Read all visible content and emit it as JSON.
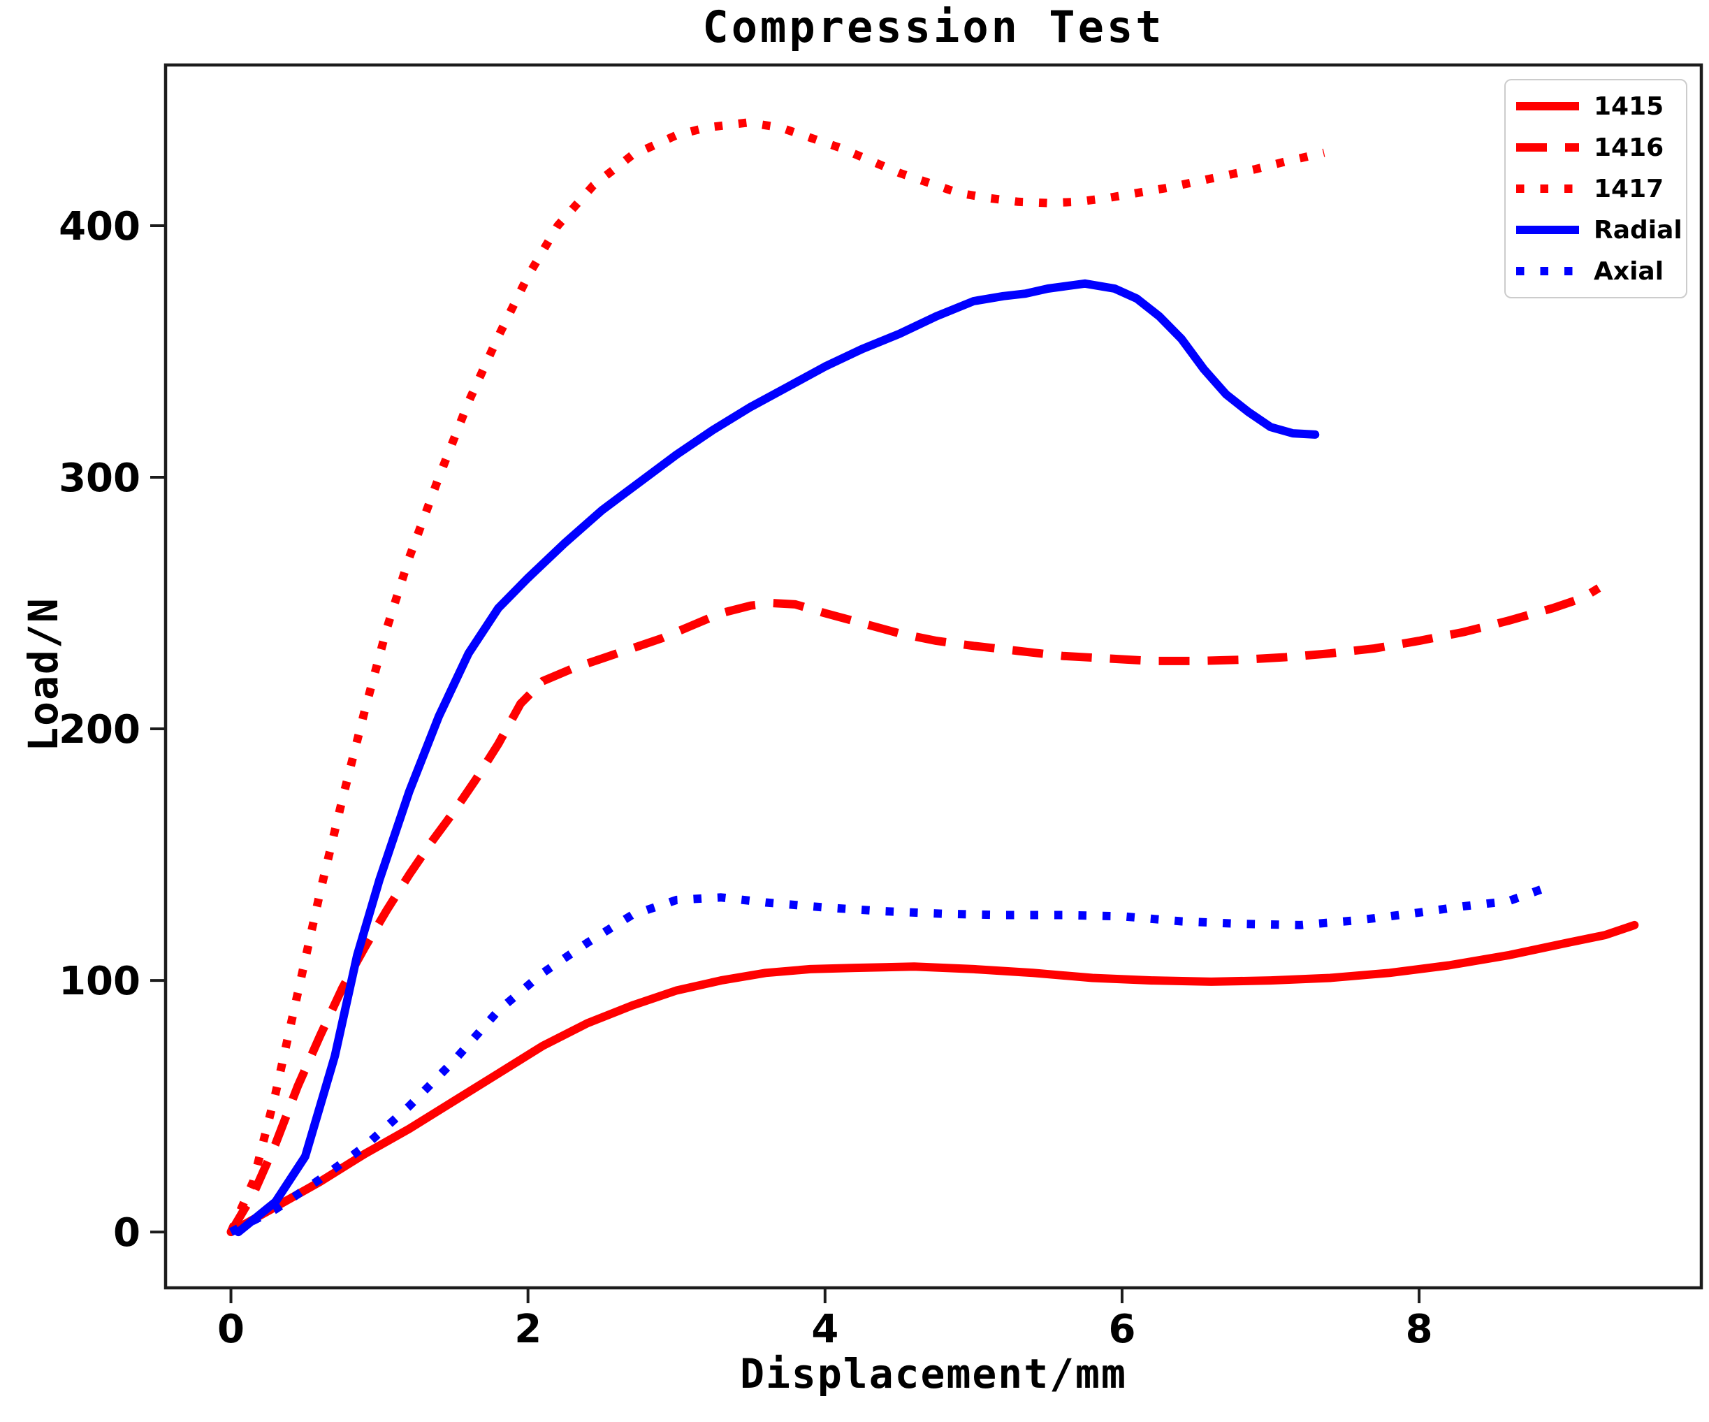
{
  "colors": {
    "red": "#ff0000",
    "blue": "#0000ff",
    "spine": "#1c1c1c",
    "legend_border": "#cccccc",
    "text": "#000000"
  },
  "legend": {
    "items": [
      {
        "label": "1415"
      },
      {
        "label": "1416"
      },
      {
        "label": "1417"
      },
      {
        "label": "Radial"
      },
      {
        "label": "Axial"
      }
    ]
  },
  "chart_data": {
    "type": "line",
    "title": "Compression Test",
    "xlabel": "Displacement/mm",
    "ylabel": "Load/N",
    "xlim": [
      -0.44,
      9.9
    ],
    "ylim": [
      -22.2,
      463.9
    ],
    "xticks": [
      0,
      2,
      4,
      6,
      8
    ],
    "yticks": [
      0,
      100,
      200,
      300,
      400
    ],
    "grid": false,
    "legend_position": "upper right",
    "series": [
      {
        "name": "1415",
        "color": "#ff0000",
        "style": "solid",
        "points": [
          [
            0,
            0
          ],
          [
            0.3,
            10
          ],
          [
            0.6,
            20
          ],
          [
            0.9,
            31
          ],
          [
            1.2,
            41
          ],
          [
            1.5,
            52
          ],
          [
            1.8,
            63
          ],
          [
            2.1,
            74
          ],
          [
            2.4,
            83
          ],
          [
            2.7,
            90
          ],
          [
            3.0,
            96
          ],
          [
            3.3,
            100
          ],
          [
            3.6,
            103
          ],
          [
            3.9,
            104.5
          ],
          [
            4.2,
            105
          ],
          [
            4.6,
            105.5
          ],
          [
            5.0,
            104.5
          ],
          [
            5.4,
            103
          ],
          [
            5.8,
            101
          ],
          [
            6.2,
            100
          ],
          [
            6.6,
            99.5
          ],
          [
            7.0,
            100
          ],
          [
            7.4,
            101
          ],
          [
            7.8,
            103
          ],
          [
            8.2,
            106
          ],
          [
            8.6,
            110
          ],
          [
            9.0,
            115
          ],
          [
            9.25,
            118
          ],
          [
            9.45,
            122
          ]
        ]
      },
      {
        "name": "1416",
        "color": "#ff0000",
        "style": "dashed",
        "points": [
          [
            0,
            0
          ],
          [
            0.15,
            15
          ],
          [
            0.3,
            35
          ],
          [
            0.45,
            58
          ],
          [
            0.6,
            78
          ],
          [
            0.75,
            97
          ],
          [
            0.9,
            113
          ],
          [
            1.05,
            128
          ],
          [
            1.2,
            142
          ],
          [
            1.35,
            155
          ],
          [
            1.5,
            167
          ],
          [
            1.65,
            180
          ],
          [
            1.8,
            194
          ],
          [
            1.95,
            210
          ],
          [
            2.1,
            219
          ],
          [
            2.3,
            224
          ],
          [
            2.5,
            228
          ],
          [
            2.7,
            232
          ],
          [
            2.9,
            236
          ],
          [
            3.1,
            241
          ],
          [
            3.3,
            246
          ],
          [
            3.5,
            249
          ],
          [
            3.65,
            250
          ],
          [
            3.8,
            249.5
          ],
          [
            4.0,
            246
          ],
          [
            4.25,
            242
          ],
          [
            4.5,
            238
          ],
          [
            4.75,
            235
          ],
          [
            5.0,
            233
          ],
          [
            5.3,
            231
          ],
          [
            5.6,
            229
          ],
          [
            5.9,
            228
          ],
          [
            6.2,
            227
          ],
          [
            6.5,
            227
          ],
          [
            6.8,
            227.5
          ],
          [
            7.1,
            228.5
          ],
          [
            7.4,
            230
          ],
          [
            7.7,
            232
          ],
          [
            8.0,
            235
          ],
          [
            8.3,
            238.5
          ],
          [
            8.6,
            243
          ],
          [
            8.9,
            248
          ],
          [
            9.1,
            252
          ],
          [
            9.21,
            256
          ]
        ]
      },
      {
        "name": "1417",
        "color": "#ff0000",
        "style": "dotted",
        "points": [
          [
            0,
            0
          ],
          [
            0.15,
            20
          ],
          [
            0.3,
            55
          ],
          [
            0.45,
            95
          ],
          [
            0.6,
            135
          ],
          [
            0.75,
            172
          ],
          [
            0.9,
            207
          ],
          [
            1.05,
            240
          ],
          [
            1.2,
            268
          ],
          [
            1.4,
            300
          ],
          [
            1.6,
            330
          ],
          [
            1.8,
            356
          ],
          [
            2.0,
            380
          ],
          [
            2.2,
            400
          ],
          [
            2.44,
            416
          ],
          [
            2.7,
            428
          ],
          [
            3.0,
            436
          ],
          [
            3.2,
            439
          ],
          [
            3.48,
            441
          ],
          [
            3.7,
            439
          ],
          [
            3.9,
            435
          ],
          [
            4.1,
            431
          ],
          [
            4.3,
            426
          ],
          [
            4.5,
            421
          ],
          [
            4.7,
            417
          ],
          [
            4.9,
            413
          ],
          [
            5.1,
            411
          ],
          [
            5.3,
            409.5
          ],
          [
            5.5,
            409
          ],
          [
            5.7,
            409.5
          ],
          [
            5.9,
            411
          ],
          [
            6.1,
            413
          ],
          [
            6.3,
            415
          ],
          [
            6.5,
            417.5
          ],
          [
            6.7,
            420
          ],
          [
            6.9,
            422.5
          ],
          [
            7.1,
            425.5
          ],
          [
            7.36,
            429
          ]
        ]
      },
      {
        "name": "Radial",
        "color": "#0000ff",
        "style": "solid",
        "points": [
          [
            0.05,
            0
          ],
          [
            0.3,
            12
          ],
          [
            0.5,
            30
          ],
          [
            0.7,
            70
          ],
          [
            0.85,
            110
          ],
          [
            1.0,
            140
          ],
          [
            1.2,
            175
          ],
          [
            1.4,
            205
          ],
          [
            1.6,
            230
          ],
          [
            1.8,
            248
          ],
          [
            2.0,
            260
          ],
          [
            2.25,
            274
          ],
          [
            2.5,
            287
          ],
          [
            2.75,
            298
          ],
          [
            3.0,
            309
          ],
          [
            3.25,
            319
          ],
          [
            3.5,
            328
          ],
          [
            3.75,
            336
          ],
          [
            4.0,
            344
          ],
          [
            4.25,
            351
          ],
          [
            4.5,
            357
          ],
          [
            4.75,
            364
          ],
          [
            5.0,
            370
          ],
          [
            5.2,
            372
          ],
          [
            5.35,
            373
          ],
          [
            5.5,
            375
          ],
          [
            5.75,
            377
          ],
          [
            5.95,
            375
          ],
          [
            6.1,
            371
          ],
          [
            6.25,
            364
          ],
          [
            6.4,
            355
          ],
          [
            6.55,
            343
          ],
          [
            6.7,
            333
          ],
          [
            6.85,
            326
          ],
          [
            7.0,
            320
          ],
          [
            7.15,
            317.5
          ],
          [
            7.3,
            317
          ]
        ]
      },
      {
        "name": "Axial",
        "color": "#0000ff",
        "style": "dotted",
        "points": [
          [
            0,
            0
          ],
          [
            0.3,
            9
          ],
          [
            0.6,
            21
          ],
          [
            0.9,
            34
          ],
          [
            1.2,
            50
          ],
          [
            1.5,
            68
          ],
          [
            1.8,
            88
          ],
          [
            2.1,
            103
          ],
          [
            2.4,
            115
          ],
          [
            2.7,
            126
          ],
          [
            3.0,
            132
          ],
          [
            3.3,
            133
          ],
          [
            3.6,
            131
          ],
          [
            4.0,
            129
          ],
          [
            4.4,
            127.5
          ],
          [
            4.8,
            126.5
          ],
          [
            5.2,
            126
          ],
          [
            5.6,
            126
          ],
          [
            6.0,
            125.5
          ],
          [
            6.4,
            123.5
          ],
          [
            6.8,
            122.5
          ],
          [
            7.2,
            122
          ],
          [
            7.6,
            124
          ],
          [
            8.0,
            127
          ],
          [
            8.3,
            129.5
          ],
          [
            8.6,
            131.5
          ],
          [
            8.86,
            137
          ]
        ]
      }
    ]
  }
}
